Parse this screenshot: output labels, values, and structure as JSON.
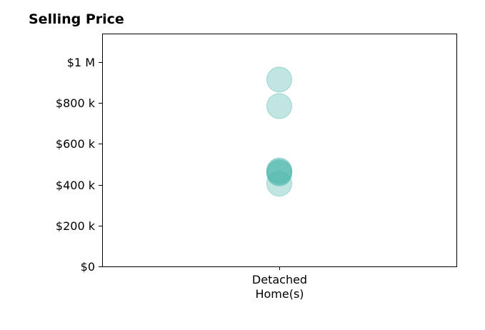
{
  "chart_data": {
    "type": "scatter",
    "title": "Selling Price",
    "xlabel": "",
    "ylabel": "",
    "categories": [
      "Detached\nHome(s)"
    ],
    "ylim": [
      0,
      1140000
    ],
    "yticks": [
      {
        "value": 0,
        "label": "$0"
      },
      {
        "value": 200000,
        "label": "$200 k"
      },
      {
        "value": 400000,
        "label": "$400 k"
      },
      {
        "value": 600000,
        "label": "$600 k"
      },
      {
        "value": 800000,
        "label": "$800 k"
      },
      {
        "value": 1000000,
        "label": "$1 M"
      }
    ],
    "grid": false,
    "point_color": "#4db6ac",
    "series": [
      {
        "category": "Detached\nHome(s)",
        "values": [
          915000,
          785000,
          470000,
          465000,
          460000,
          455000,
          405000
        ]
      }
    ]
  }
}
